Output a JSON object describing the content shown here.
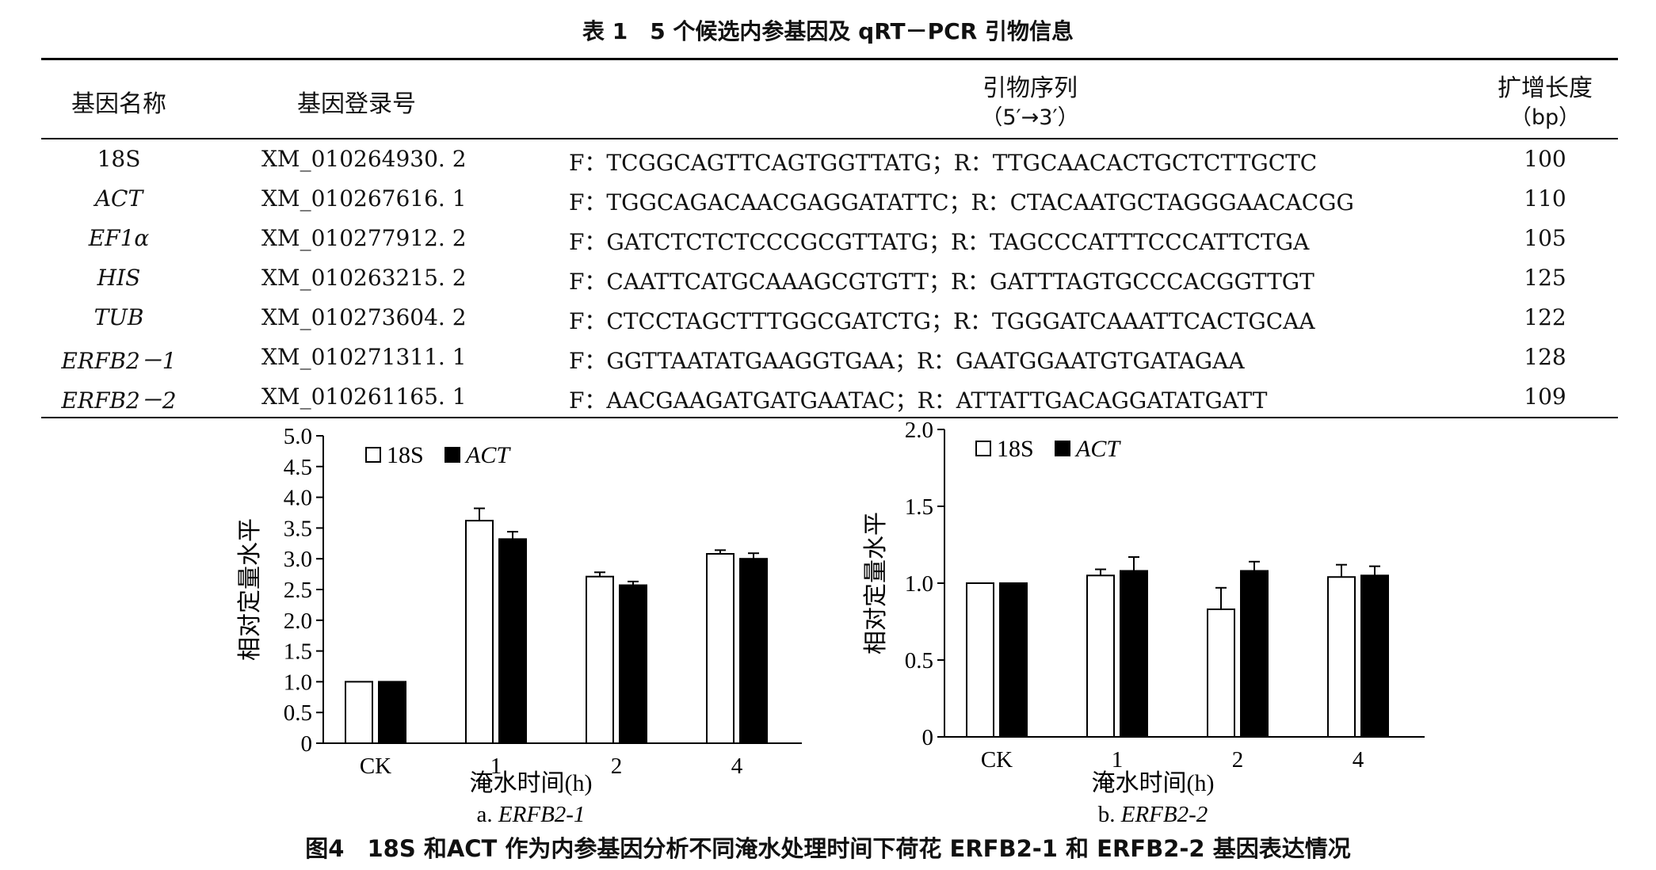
{
  "table": {
    "title": "表 1　5 个候选内参基因及 qRT－PCR 引物信息",
    "headers": {
      "gene_name": "基因名称",
      "accession": "基因登录号",
      "primer_line1": "引物序列",
      "primer_line2": "（5′→3′）",
      "length_line1": "扩增长度",
      "length_line2": "（bp）"
    },
    "rows": [
      {
        "gene": "18S",
        "italic": false,
        "accession": "XM_010264930. 2",
        "primers": "F：TCGGCAGTTCAGTGGTTATG；R：TTGCAACACTGCTCTTGCTC",
        "length": "100"
      },
      {
        "gene": "ACT",
        "italic": true,
        "accession": "XM_010267616. 1",
        "primers": "F：TGGCAGACAACGAGGATATTC；R：CTACAATGCTAGGGAACACGG",
        "length": "110"
      },
      {
        "gene": "EF1α",
        "italic": true,
        "accession": "XM_010277912. 2",
        "primers": "F：GATCTCTCTCCCGCGTTATG；R：TAGCCCATTTCCCATTCTGA",
        "length": "105"
      },
      {
        "gene": "HIS",
        "italic": true,
        "accession": "XM_010263215. 2",
        "primers": "F：CAATTCATGCAAAGCGTGTT；R：GATTTAGTGCCCACGGTTGT",
        "length": "125"
      },
      {
        "gene": "TUB",
        "italic": true,
        "accession": "XM_010273604. 2",
        "primers": "F：CTCCTAGCTTTGGCGATCTG；R：TGGGATCAAATTCACTGCAA",
        "length": "122"
      },
      {
        "gene": "ERFB2－1",
        "italic": true,
        "accession": "XM_010271311. 1",
        "primers": "F：GGTTAATATGAAGGTGAA；R：GAATGGAATGTGATAGAA",
        "length": "128"
      },
      {
        "gene": "ERFB2－2",
        "italic": true,
        "accession": "XM_010261165. 1",
        "primers": "F：AACGAAGATGATGAATAC；R：ATTATTGACAGGATATGATT",
        "length": "109"
      }
    ]
  },
  "figure_caption": "图4　18S 和ACT 作为内参基因分析不同淹水处理时间下荷花 ERFB2-1 和 ERFB2-2 基因表达情况",
  "chart_data": [
    {
      "type": "bar",
      "panel_label": "a.",
      "panel_gene": "ERFB2-1",
      "xlabel": "淹水时间(h)",
      "ylabel": "相对定量水平",
      "categories": [
        "CK",
        "1",
        "2",
        "4"
      ],
      "ylim": [
        0,
        5.0
      ],
      "yticks": [
        0,
        0.5,
        1.0,
        1.5,
        2.0,
        2.5,
        3.0,
        3.5,
        4.0,
        4.5,
        5.0
      ],
      "ytick_labels": [
        "0",
        "0.5",
        "1.0",
        "1.5",
        "2.0",
        "2.5",
        "3.0",
        "3.5",
        "4.0",
        "4.5",
        "5.0"
      ],
      "legend_position": "top-left",
      "series": [
        {
          "name": "18S",
          "fill": "#ffffff",
          "values": [
            1.0,
            3.62,
            2.71,
            3.08
          ],
          "errors": [
            0.0,
            0.2,
            0.07,
            0.06
          ]
        },
        {
          "name": "ACT",
          "fill": "#000000",
          "values": [
            1.0,
            3.32,
            2.57,
            3.0
          ],
          "errors": [
            0.0,
            0.12,
            0.06,
            0.09
          ]
        }
      ]
    },
    {
      "type": "bar",
      "panel_label": "b.",
      "panel_gene": "ERFB2-2",
      "xlabel": "淹水时间(h)",
      "ylabel": "相对定量水平",
      "categories": [
        "CK",
        "1",
        "2",
        "4"
      ],
      "ylim": [
        0,
        2.0
      ],
      "yticks": [
        0,
        0.5,
        1.0,
        1.5,
        2.0
      ],
      "ytick_labels": [
        "0",
        "0.5",
        "1.0",
        "1.5",
        "2.0"
      ],
      "legend_position": "top-left",
      "series": [
        {
          "name": "18S",
          "fill": "#ffffff",
          "values": [
            1.0,
            1.05,
            0.83,
            1.04
          ],
          "errors": [
            0.0,
            0.04,
            0.14,
            0.08
          ]
        },
        {
          "name": "ACT",
          "fill": "#000000",
          "values": [
            1.0,
            1.08,
            1.08,
            1.05
          ],
          "errors": [
            0.0,
            0.09,
            0.06,
            0.06
          ]
        }
      ]
    }
  ]
}
